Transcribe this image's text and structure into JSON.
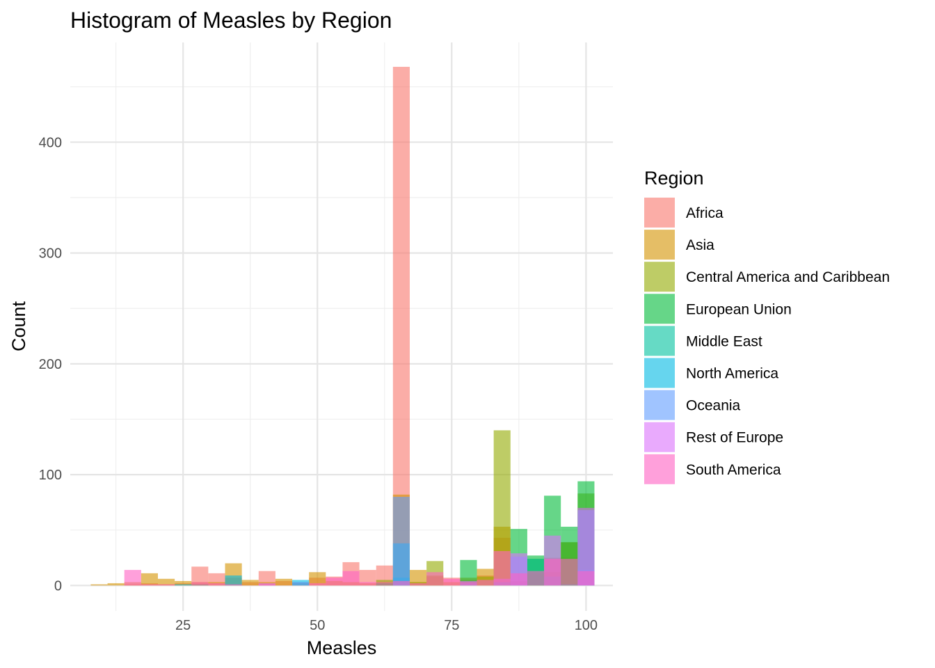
{
  "chart_data": {
    "type": "histogram",
    "title": "Histogram of Measles by Region",
    "xlabel": "Measles",
    "ylabel": "Count",
    "xlim": [
      4,
      105
    ],
    "ylim": [
      -23,
      490
    ],
    "x_ticks": [
      25,
      50,
      75,
      100
    ],
    "y_ticks": [
      0,
      100,
      200,
      300,
      400
    ],
    "grid": true,
    "bin_width": 3.125,
    "bin_centers": [
      9.375,
      12.5,
      15.625,
      18.75,
      21.875,
      25,
      28.125,
      31.25,
      34.375,
      37.5,
      40.625,
      43.75,
      46.875,
      50,
      53.125,
      56.25,
      59.375,
      62.5,
      65.625,
      68.75,
      71.875,
      75,
      78.125,
      81.25,
      84.375,
      87.5,
      90.625,
      93.75,
      96.875,
      100
    ],
    "legend": {
      "title": "Region",
      "position": "right"
    },
    "series": [
      {
        "name": "Africa",
        "color": "#F8766D",
        "values": [
          0,
          0,
          1,
          2,
          1,
          2,
          17,
          11,
          7,
          3,
          13,
          4,
          3,
          7,
          8,
          21,
          14,
          18,
          468,
          3,
          8,
          7,
          5,
          9,
          43,
          3,
          12,
          25,
          25,
          2
        ]
      },
      {
        "name": "Asia",
        "color": "#D39200",
        "values": [
          1,
          2,
          3,
          11,
          6,
          4,
          3,
          3,
          20,
          5,
          3,
          6,
          2,
          12,
          4,
          3,
          2,
          3,
          82,
          14,
          9,
          3,
          7,
          15,
          53,
          4,
          10,
          12,
          39,
          70
        ]
      },
      {
        "name": "Central America and Caribbean",
        "color": "#93AA00",
        "values": [
          0,
          0,
          0,
          0,
          0,
          0,
          0,
          0,
          0,
          0,
          0,
          0,
          0,
          0,
          0,
          0,
          0,
          5,
          0,
          3,
          22,
          0,
          0,
          8,
          140,
          0,
          24,
          0,
          39,
          83
        ]
      },
      {
        "name": "European Union",
        "color": "#00BA38",
        "values": [
          0,
          0,
          0,
          0,
          0,
          0,
          1,
          0,
          0,
          0,
          0,
          0,
          0,
          0,
          0,
          0,
          0,
          2,
          0,
          0,
          0,
          0,
          23,
          0,
          0,
          51,
          27,
          81,
          53,
          94
        ]
      },
      {
        "name": "Middle East",
        "color": "#00C19F",
        "values": [
          0,
          0,
          0,
          0,
          0,
          0,
          0,
          0,
          0,
          0,
          0,
          0,
          0,
          0,
          0,
          0,
          0,
          0,
          7,
          0,
          0,
          0,
          2,
          0,
          3,
          1,
          24,
          8,
          1,
          2
        ]
      },
      {
        "name": "North America",
        "color": "#00B9E3",
        "values": [
          0,
          0,
          0,
          0,
          0,
          1,
          0,
          0,
          9,
          0,
          0,
          0,
          5,
          0,
          0,
          0,
          0,
          0,
          38,
          0,
          0,
          0,
          0,
          0,
          0,
          0,
          0,
          0,
          0,
          14
        ]
      },
      {
        "name": "Oceania",
        "color": "#619CFF",
        "values": [
          0,
          0,
          0,
          0,
          0,
          0,
          0,
          0,
          0,
          0,
          0,
          0,
          3,
          0,
          0,
          0,
          0,
          0,
          80,
          0,
          0,
          0,
          0,
          0,
          0,
          26,
          0,
          0,
          0,
          68
        ]
      },
      {
        "name": "Rest of Europe",
        "color": "#DB72FB",
        "values": [
          0,
          0,
          0,
          0,
          0,
          0,
          0,
          0,
          0,
          0,
          2,
          0,
          0,
          0,
          0,
          0,
          0,
          0,
          0,
          0,
          0,
          0,
          4,
          0,
          6,
          29,
          0,
          45,
          0,
          70
        ]
      },
      {
        "name": "South America",
        "color": "#FF61C3",
        "values": [
          0,
          0,
          14,
          1,
          1,
          0,
          3,
          2,
          1,
          0,
          1,
          0,
          0,
          2,
          7,
          13,
          3,
          3,
          4,
          2,
          12,
          6,
          3,
          5,
          31,
          11,
          13,
          24,
          24,
          13
        ]
      }
    ]
  }
}
